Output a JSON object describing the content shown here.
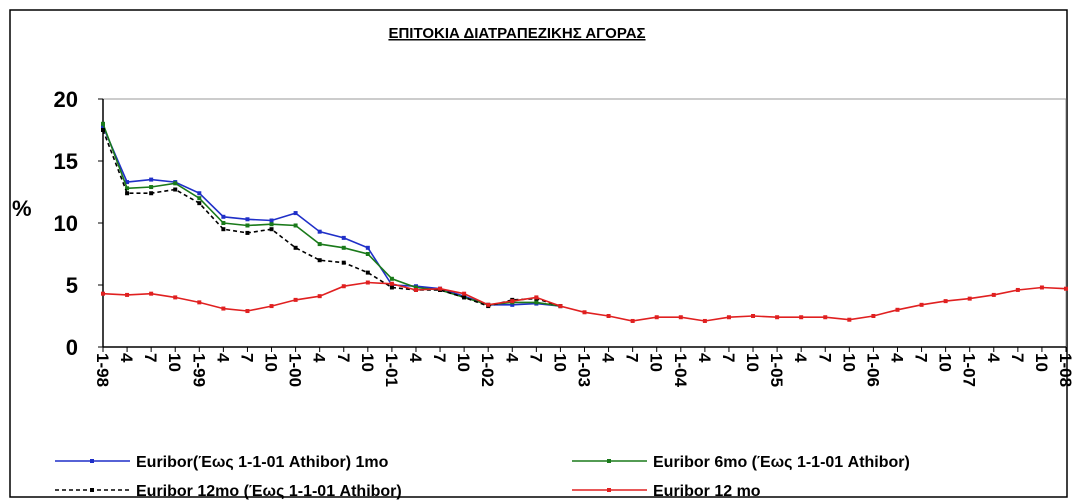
{
  "chart_data": {
    "type": "line",
    "title": "ΕΠΙΤΟΚΙΑ ΔΙΑΤΡΑΠΕΖΙΚΗΣ ΑΓΟΡΑΣ",
    "ylabel": "%",
    "categories": [
      "1-98",
      "4",
      "7",
      "10",
      "1-99",
      "4",
      "7",
      "10",
      "1-00",
      "4",
      "7",
      "10",
      "1-01",
      "4",
      "7",
      "10",
      "1-02",
      "4",
      "7",
      "10",
      "1-03",
      "4",
      "7",
      "10",
      "1-04",
      "4",
      "7",
      "10",
      "1-05",
      "4",
      "7",
      "10",
      "1-06",
      "4",
      "7",
      "10",
      "1-07",
      "4",
      "7",
      "10",
      "1-08"
    ],
    "ylim": [
      0,
      20
    ],
    "yticks": [
      0,
      5,
      10,
      15,
      20
    ],
    "grid": false,
    "series": [
      {
        "name": "Euribor(Έως 1-1-01 Athibor) 1mo",
        "color": "#1f2fc8",
        "dashed": false,
        "values": [
          17.8,
          13.3,
          13.5,
          13.3,
          12.4,
          10.5,
          10.3,
          10.2,
          10.8,
          9.3,
          8.8,
          8.0,
          5.0,
          4.9,
          4.7,
          4.1,
          3.4,
          3.4,
          3.5,
          3.3,
          null,
          null,
          null,
          null,
          null,
          null,
          null,
          null,
          null,
          null,
          null,
          null,
          null,
          null,
          null,
          null,
          null,
          null,
          null,
          null,
          null
        ]
      },
      {
        "name": "Euribor 6mo (Έως 1-1-01 Athibor)",
        "color": "#1a7a1a",
        "dashed": false,
        "values": [
          18.0,
          12.8,
          12.9,
          13.2,
          12.0,
          10.0,
          9.8,
          9.9,
          9.8,
          8.3,
          8.0,
          7.5,
          5.5,
          4.8,
          4.6,
          4.0,
          3.4,
          3.6,
          3.6,
          3.3,
          null,
          null,
          null,
          null,
          null,
          null,
          null,
          null,
          null,
          null,
          null,
          null,
          null,
          null,
          null,
          null,
          null,
          null,
          null,
          null,
          null
        ]
      },
      {
        "name": "Euribor 12mo (Έως 1-1-01 Athibor)",
        "color": "#000000",
        "dashed": true,
        "values": [
          17.5,
          12.4,
          12.4,
          12.7,
          11.6,
          9.5,
          9.2,
          9.5,
          8.0,
          7.0,
          6.8,
          6.0,
          4.8,
          4.6,
          4.6,
          4.0,
          3.3,
          3.8,
          3.9,
          3.3,
          null,
          null,
          null,
          null,
          null,
          null,
          null,
          null,
          null,
          null,
          null,
          null,
          null,
          null,
          null,
          null,
          null,
          null,
          null,
          null,
          null
        ]
      },
      {
        "name": "Euribor 12 mo",
        "color": "#e02020",
        "dashed": false,
        "values": [
          4.3,
          4.2,
          4.3,
          4.0,
          3.6,
          3.1,
          2.9,
          3.3,
          3.8,
          4.1,
          4.9,
          5.2,
          5.1,
          4.6,
          4.7,
          4.3,
          3.4,
          3.7,
          4.0,
          3.3,
          2.8,
          2.5,
          2.1,
          2.4,
          2.4,
          2.1,
          2.4,
          2.5,
          2.4,
          2.4,
          2.4,
          2.2,
          2.5,
          3.0,
          3.4,
          3.7,
          3.9,
          4.2,
          4.6,
          4.8,
          4.7
        ]
      }
    ]
  }
}
